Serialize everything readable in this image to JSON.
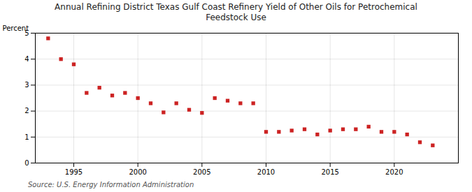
{
  "chart_data": {
    "type": "scatter",
    "title": "Annual Refining District Texas Gulf Coast Refinery Yield of Other Oils for Petrochemical\nFeedstock Use",
    "ylabel": "Percent",
    "annotations": [
      "Source: U.S. Energy Information Administration"
    ],
    "x": [
      1993,
      1994,
      1995,
      1996,
      1997,
      1998,
      1999,
      2000,
      2001,
      2002,
      2003,
      2004,
      2005,
      2006,
      2007,
      2008,
      2009,
      2010,
      2011,
      2012,
      2013,
      2014,
      2015,
      2016,
      2017,
      2018,
      2019,
      2020,
      2021,
      2022,
      2023
    ],
    "values": [
      4.8,
      4.0,
      3.8,
      2.7,
      2.9,
      2.6,
      2.7,
      2.5,
      2.3,
      1.95,
      2.3,
      2.05,
      1.93,
      2.5,
      2.4,
      2.3,
      2.3,
      1.2,
      1.2,
      1.25,
      1.3,
      1.1,
      1.25,
      1.3,
      1.3,
      1.4,
      1.2,
      1.2,
      1.1,
      0.8,
      0.68
    ],
    "color": "#cc2222",
    "marker": "square",
    "xlim": [
      1992,
      2025
    ],
    "xticks": [
      1995,
      2000,
      2005,
      2010,
      2015,
      2020
    ],
    "ylim": [
      0,
      5
    ],
    "yticks": [
      0,
      1,
      2,
      3,
      4,
      5
    ],
    "grid": true
  }
}
